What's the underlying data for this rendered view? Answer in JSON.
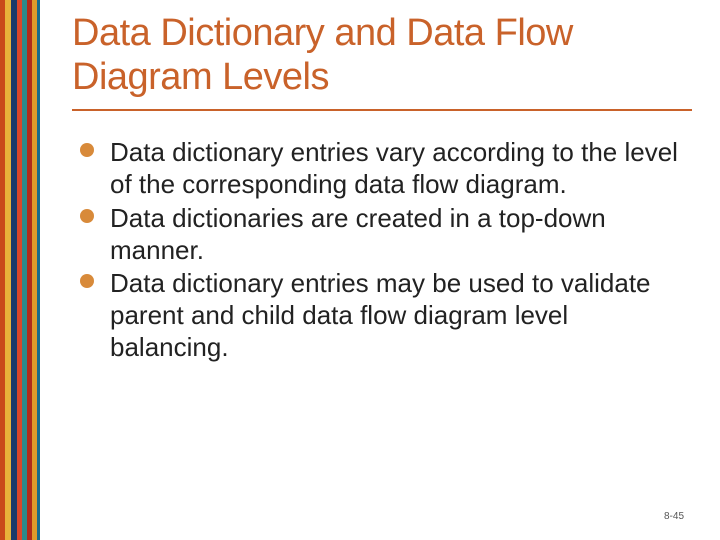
{
  "colors": {
    "title": "#c9622a",
    "bullet": "#d88a3a",
    "divider": "#c9622a",
    "body_text": "#222222",
    "page_num": "#555555",
    "background": "#ffffff"
  },
  "typography": {
    "title_fontsize": 38,
    "body_fontsize": 26,
    "page_num_fontsize": 10,
    "font_family": "Verdana"
  },
  "title": "Data Dictionary and Data Flow Diagram Levels",
  "bullets": [
    "Data dictionary entries vary according to the level of the corresponding data flow diagram.",
    "Data dictionaries are created in a top-down manner.",
    "Data dictionary entries may be used to validate parent and child data flow diagram level balancing."
  ],
  "page_number": "8-45"
}
